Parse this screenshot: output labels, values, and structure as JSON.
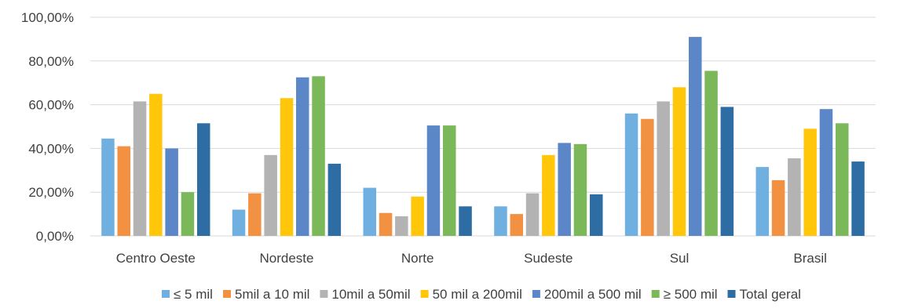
{
  "chart_data": {
    "type": "bar",
    "title": "",
    "xlabel": "",
    "ylabel": "",
    "ylim": [
      0,
      100
    ],
    "yticks": [
      0,
      20,
      40,
      60,
      80,
      100
    ],
    "ytick_labels": [
      "0,00%",
      "20,00%",
      "40,00%",
      "60,00%",
      "80,00%",
      "100,00%"
    ],
    "grid": true,
    "legend_position": "bottom",
    "categories": [
      "Centro Oeste",
      "Nordeste",
      "Norte",
      "Sudeste",
      "Sul",
      "Brasil"
    ],
    "series": [
      {
        "name": "≤ 5  mil",
        "color": "#6fb0e0",
        "values": [
          44.5,
          12.0,
          22.0,
          13.5,
          56.0,
          31.5
        ]
      },
      {
        "name": "5mil a 10 mil",
        "color": "#f29142",
        "values": [
          41.0,
          19.5,
          10.5,
          10.0,
          53.5,
          25.5
        ]
      },
      {
        "name": "10mil a 50mil",
        "color": "#b3b3b3",
        "values": [
          61.5,
          37.0,
          9.0,
          19.5,
          61.5,
          35.5
        ]
      },
      {
        "name": "50 mil a 200mil",
        "color": "#ffc60a",
        "values": [
          65.0,
          63.0,
          18.0,
          37.0,
          68.0,
          49.0
        ]
      },
      {
        "name": "200mil a 500 mil",
        "color": "#5b87c8",
        "values": [
          40.0,
          72.5,
          50.5,
          42.5,
          91.0,
          58.0
        ]
      },
      {
        "name": "≥ 500 mil",
        "color": "#7ab85a",
        "values": [
          20.0,
          73.0,
          50.5,
          42.0,
          75.5,
          51.5
        ]
      },
      {
        "name": "Total geral",
        "color": "#2e6da4",
        "values": [
          51.5,
          33.0,
          13.5,
          19.0,
          59.0,
          34.0
        ]
      }
    ]
  }
}
